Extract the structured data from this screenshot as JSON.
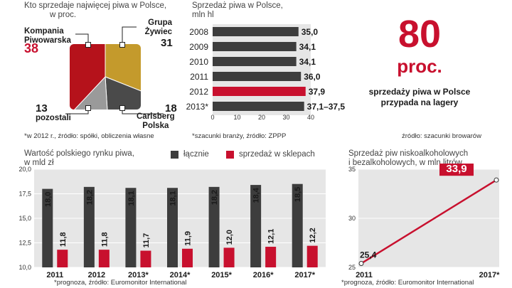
{
  "pie": {
    "title_line1": "Kto sprzedaje najwięcej piwa w Polsce,",
    "title_line2": "w proc.",
    "footnote": "*w 2012 r., źródło: spółki, obliczenia własne",
    "slices": [
      {
        "name_line1": "Kompania",
        "name_line2": "Piwowarska",
        "value": "38",
        "color": "#b5121b"
      },
      {
        "name_line1": "Grupa",
        "name_line2": "Żywiec",
        "value": "31",
        "color": "#c49a2c"
      },
      {
        "name_line1": "Carlsberg",
        "name_line2": "Polska",
        "value": "18",
        "color": "#4a4a4a"
      },
      {
        "name_line1": "pozostali",
        "name_line2": "",
        "value": "13",
        "color": "#9a9a9a"
      }
    ]
  },
  "sales": {
    "title_line1": "Sprzedaż piwa w Polsce,",
    "title_line2": "mln hl",
    "footnote": "*szacunki branży, źródło: ZPPP",
    "axis_ticks": [
      "0",
      "10",
      "20",
      "30",
      "40"
    ]
  },
  "callout": {
    "big": "80",
    "unit": "proc.",
    "line1": "sprzedaży piwa w Polsce",
    "line2": "przypada na lagery",
    "footnote": "źródło: szacunki browarów"
  },
  "market": {
    "title_line1": "Wartość polskiego rynku piwa,",
    "title_line2": "w mld zł",
    "legend_total": "łącznie",
    "legend_stores": "sprzedaż w sklepach",
    "footnote": "*prognoza, źródło: Euromonitor International",
    "y_ticks": [
      "10,0",
      "12,5",
      "15,0",
      "17,5",
      "20,0"
    ]
  },
  "lowalc": {
    "title_line1": "Sprzedaż piw niskoalkoholowych",
    "title_line2": "i bezalkoholowych, w mln litrów",
    "footnote": "*prognoza, źródło: Euromonitor International",
    "y_ticks": [
      "25",
      "30",
      "35"
    ]
  },
  "chart_data": [
    {
      "type": "pie",
      "title": "Kto sprzedaje najwięcej piwa w Polsce, w proc.",
      "categories": [
        "Kompania Piwowarska",
        "Grupa Żywiec",
        "Carlsberg Polska",
        "pozostali"
      ],
      "values": [
        38,
        31,
        18,
        13
      ]
    },
    {
      "type": "bar",
      "orientation": "horizontal",
      "title": "Sprzedaż piwa w Polsce, mln hl",
      "categories": [
        "2008",
        "2009",
        "2010",
        "2011",
        "2012",
        "2013*"
      ],
      "values": [
        35.0,
        34.1,
        34.1,
        36.0,
        37.9,
        37.3
      ],
      "labels": [
        "35,0",
        "34,1",
        "34,1",
        "36,0",
        "37,9",
        "37,1–37,5"
      ],
      "colors": [
        "#3d3d3d",
        "#3d3d3d",
        "#3d3d3d",
        "#3d3d3d",
        "#c8102e",
        "#3d3d3d"
      ],
      "xlim": [
        0,
        40
      ],
      "grid": false
    },
    {
      "type": "bar",
      "title": "Wartość polskiego rynku piwa, w mld zł",
      "categories": [
        "2011",
        "2012",
        "2013*",
        "2014*",
        "2015*",
        "2016*",
        "2017*"
      ],
      "series": [
        {
          "name": "łącznie",
          "color": "#3d3d3d",
          "values": [
            18.0,
            18.2,
            18.1,
            18.1,
            18.2,
            18.4,
            18.5
          ],
          "labels": [
            "18,0",
            "18,2",
            "18,1",
            "18,1",
            "18,2",
            "18,4",
            "18,5"
          ]
        },
        {
          "name": "sprzedaż w sklepach",
          "color": "#c8102e",
          "values": [
            11.8,
            11.8,
            11.7,
            11.9,
            12.0,
            12.1,
            12.2
          ],
          "labels": [
            "11,8",
            "11,8",
            "11,7",
            "11,9",
            "12,0",
            "12,1",
            "12,2"
          ]
        }
      ],
      "ylim": [
        10,
        20
      ],
      "legend": "top",
      "grid": true
    },
    {
      "type": "line",
      "title": "Sprzedaż piw niskoalkoholowych i bezalkoholowych, w mln litrów",
      "x": [
        "2011",
        "2017*"
      ],
      "values": [
        25.4,
        33.9
      ],
      "labels": [
        "25,4",
        "33,9"
      ],
      "color": "#c8102e",
      "ylim": [
        25,
        35
      ],
      "grid": true
    }
  ]
}
